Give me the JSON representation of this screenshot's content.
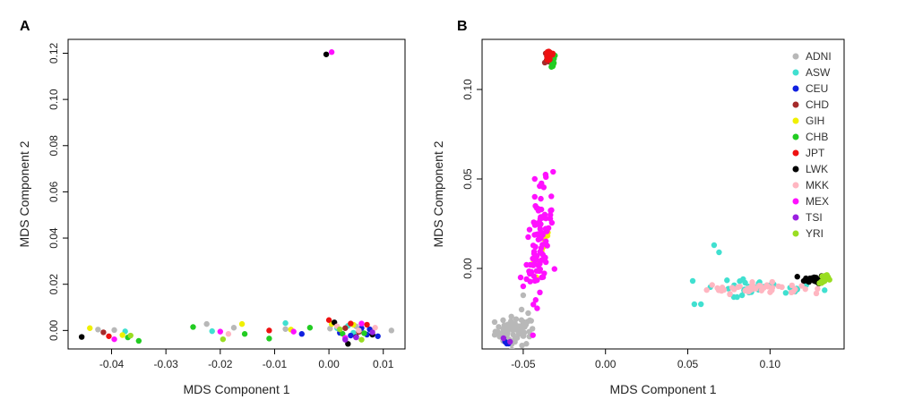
{
  "chart_data": [
    {
      "type": "scatter",
      "panel_label": "A",
      "title": "",
      "xlabel": "MDS Component 1",
      "ylabel": "MDS Component 2",
      "xlim": [
        -0.048,
        0.014
      ],
      "ylim": [
        -0.008,
        0.126
      ],
      "xticks": [
        -0.04,
        -0.03,
        -0.02,
        -0.01,
        0.0,
        0.01
      ],
      "xtick_labels": [
        "-0.04",
        "-0.03",
        "-0.02",
        "-0.01",
        "0.00",
        "0.01"
      ],
      "yticks": [
        0.0,
        0.02,
        0.04,
        0.06,
        0.08,
        0.1,
        0.12
      ],
      "ytick_labels": [
        "0.00",
        "0.02",
        "0.04",
        "0.06",
        "0.08",
        "0.10",
        "0.12"
      ],
      "series": [
        {
          "name": "ADNI",
          "color": "#b8b8b8",
          "points": [
            [
              -0.0425,
              0.0004
            ],
            [
              -0.0395,
              0.0002
            ],
            [
              -0.0225,
              0.0028
            ],
            [
              -0.0175,
              0.0012
            ],
            [
              0.0002,
              0.0008
            ],
            [
              0.005,
              0.0018
            ],
            [
              0.0115,
              0.0
            ],
            [
              0.006,
              -0.0005
            ],
            [
              -0.008,
              0.0006
            ]
          ]
        },
        {
          "name": "ASW",
          "color": "#40e0d0",
          "points": [
            [
              -0.0375,
              -0.0004
            ],
            [
              -0.0215,
              -0.0003
            ],
            [
              -0.008,
              0.0032
            ],
            [
              0.0015,
              0.001
            ],
            [
              0.0045,
              -0.001
            ],
            [
              0.0035,
              0.002
            ]
          ]
        },
        {
          "name": "CEU",
          "color": "#1020e0",
          "points": [
            [
              0.004,
              -0.0022
            ],
            [
              0.007,
              -0.0018
            ],
            [
              0.009,
              -0.0025
            ],
            [
              0.006,
              0.001
            ],
            [
              0.002,
              -0.001
            ],
            [
              0.0075,
              0.0005
            ],
            [
              -0.005,
              -0.0015
            ]
          ]
        },
        {
          "name": "CHD",
          "color": "#a52a2a",
          "points": [
            [
              -0.0415,
              -0.0008
            ],
            [
              0.003,
              0.001
            ],
            [
              0.0055,
              -0.0006
            ]
          ]
        },
        {
          "name": "GIH",
          "color": "#f0f000",
          "points": [
            [
              -0.044,
              0.001
            ],
            [
              -0.038,
              -0.002
            ],
            [
              -0.016,
              0.0028
            ],
            [
              -0.007,
              0.0004
            ],
            [
              0.0005,
              0.0028
            ],
            [
              0.0045,
              0.0025
            ]
          ]
        },
        {
          "name": "CHB",
          "color": "#22cc22",
          "points": [
            [
              -0.037,
              -0.003
            ],
            [
              -0.035,
              -0.0045
            ],
            [
              -0.025,
              0.0015
            ],
            [
              -0.0155,
              -0.0015
            ],
            [
              -0.0035,
              0.0012
            ],
            [
              0.0025,
              -0.0014
            ],
            [
              0.0065,
              -0.0012
            ],
            [
              -0.011,
              -0.0035
            ]
          ]
        },
        {
          "name": "JPT",
          "color": "#ee1111",
          "points": [
            [
              -0.0405,
              -0.0025
            ],
            [
              -0.011,
              0.0
            ],
            [
              0.0,
              0.0045
            ],
            [
              0.004,
              0.003
            ],
            [
              0.007,
              0.0025
            ]
          ]
        },
        {
          "name": "LWK",
          "color": "#000000",
          "points": [
            [
              -0.0455,
              -0.0028
            ],
            [
              -0.0005,
              0.1195
            ],
            [
              0.0035,
              -0.0058
            ],
            [
              0.005,
              -0.0028
            ],
            [
              0.008,
              -0.0018
            ],
            [
              0.001,
              0.0035
            ]
          ]
        },
        {
          "name": "MKK",
          "color": "#ffb6c1",
          "points": [
            [
              -0.0185,
              -0.0015
            ],
            [
              0.0015,
              0.0018
            ],
            [
              0.0055,
              0.0
            ],
            [
              0.0085,
              0.0012
            ]
          ]
        },
        {
          "name": "MEX",
          "color": "#ff10ff",
          "points": [
            [
              -0.0395,
              -0.0038
            ],
            [
              -0.02,
              -0.0005
            ],
            [
              -0.0065,
              -0.0005
            ],
            [
              0.0005,
              0.1205
            ],
            [
              0.003,
              -0.0032
            ],
            [
              0.006,
              0.003
            ]
          ]
        },
        {
          "name": "TSI",
          "color": "#9a20e0",
          "points": [
            [
              0.005,
              -0.003
            ],
            [
              0.003,
              -0.004
            ],
            [
              0.008,
              -0.0008
            ]
          ]
        },
        {
          "name": "YRI",
          "color": "#99dd22",
          "points": [
            [
              -0.0365,
              -0.0022
            ],
            [
              -0.0195,
              -0.0038
            ],
            [
              0.006,
              -0.004
            ],
            [
              0.002,
              0.0005
            ]
          ]
        }
      ]
    },
    {
      "type": "scatter",
      "panel_label": "B",
      "title": "",
      "xlabel": "MDS Component 1",
      "ylabel": "MDS Component 2",
      "xlim": [
        -0.075,
        0.145
      ],
      "ylim": [
        -0.045,
        0.128
      ],
      "xticks": [
        -0.05,
        0.0,
        0.05,
        0.1
      ],
      "xtick_labels": [
        "-0.05",
        "0.00",
        "0.05",
        "0.10"
      ],
      "yticks": [
        0.0,
        0.05,
        0.1
      ],
      "ytick_labels": [
        "0.00",
        "0.05",
        "0.10"
      ],
      "legend_position": "top-right",
      "series": [
        {
          "name": "ADNI",
          "color": "#b8b8b8",
          "center": [
            -0.055,
            -0.035
          ],
          "spread": [
            0.006,
            0.004
          ],
          "count": 70,
          "points": [
            [
              -0.05,
              -0.015
            ],
            [
              -0.047,
              -0.025
            ],
            [
              -0.051,
              -0.023
            ]
          ]
        },
        {
          "name": "ASW",
          "color": "#40e0d0",
          "center": [
            0.095,
            -0.011
          ],
          "spread": [
            0.018,
            0.002
          ],
          "count": 30,
          "trend": -0.001,
          "points": [
            [
              0.066,
              0.013
            ],
            [
              0.069,
              0.009
            ],
            [
              0.053,
              -0.007
            ],
            [
              0.054,
              -0.02
            ],
            [
              0.058,
              -0.02
            ],
            [
              0.078,
              -0.016
            ],
            [
              0.08,
              -0.016
            ],
            [
              0.083,
              -0.015
            ]
          ]
        },
        {
          "name": "CEU",
          "color": "#1020e0",
          "points": [
            [
              -0.061,
              -0.041
            ],
            [
              -0.06,
              -0.042
            ],
            [
              -0.059,
              -0.042
            ]
          ]
        },
        {
          "name": "CHD",
          "color": "#a52a2a",
          "center": [
            -0.034,
            0.118
          ],
          "spread": [
            0.0015,
            0.002
          ],
          "count": 12,
          "points": []
        },
        {
          "name": "GIH",
          "color": "#f0f000",
          "center": [
            -0.039,
            0.01
          ],
          "spread": [
            0.002,
            0.005
          ],
          "count": 12,
          "trend": 2.5,
          "points": [
            [
              -0.035,
              0.02
            ]
          ]
        },
        {
          "name": "CHB",
          "color": "#22cc22",
          "center": [
            -0.033,
            0.116
          ],
          "spread": [
            0.0015,
            0.002
          ],
          "count": 12,
          "points": [
            [
              -0.032,
              0.113
            ]
          ]
        },
        {
          "name": "JPT",
          "color": "#ee1111",
          "center": [
            -0.034,
            0.119
          ],
          "spread": [
            0.0015,
            0.002
          ],
          "count": 20,
          "points": []
        },
        {
          "name": "LWK",
          "color": "#000000",
          "center": [
            0.127,
            -0.006
          ],
          "spread": [
            0.003,
            0.0012
          ],
          "count": 25,
          "points": []
        },
        {
          "name": "MKK",
          "color": "#ffb6c1",
          "center": [
            0.09,
            -0.011
          ],
          "spread": [
            0.014,
            0.0015
          ],
          "count": 45,
          "trend": 0.0003,
          "points": [
            [
              0.068,
              -0.011
            ],
            [
              0.072,
              -0.012
            ]
          ]
        },
        {
          "name": "MEX",
          "color": "#ff10ff",
          "center": [
            -0.04,
            0.015
          ],
          "spread": [
            0.004,
            0.013
          ],
          "count": 90,
          "trend": 2.0,
          "points": [
            [
              -0.043,
              0.05
            ],
            [
              -0.04,
              0.046
            ],
            [
              -0.046,
              -0.003
            ],
            [
              -0.05,
              -0.01
            ],
            [
              -0.048,
              0.002
            ],
            [
              -0.043,
              0.04
            ]
          ]
        },
        {
          "name": "TSI",
          "color": "#9a20e0",
          "points": [
            [
              -0.062,
              -0.039
            ],
            [
              -0.058,
              -0.041
            ]
          ]
        },
        {
          "name": "YRI",
          "color": "#99dd22",
          "center": [
            0.134,
            -0.006
          ],
          "spread": [
            0.002,
            0.0012
          ],
          "count": 18,
          "points": []
        }
      ]
    }
  ]
}
